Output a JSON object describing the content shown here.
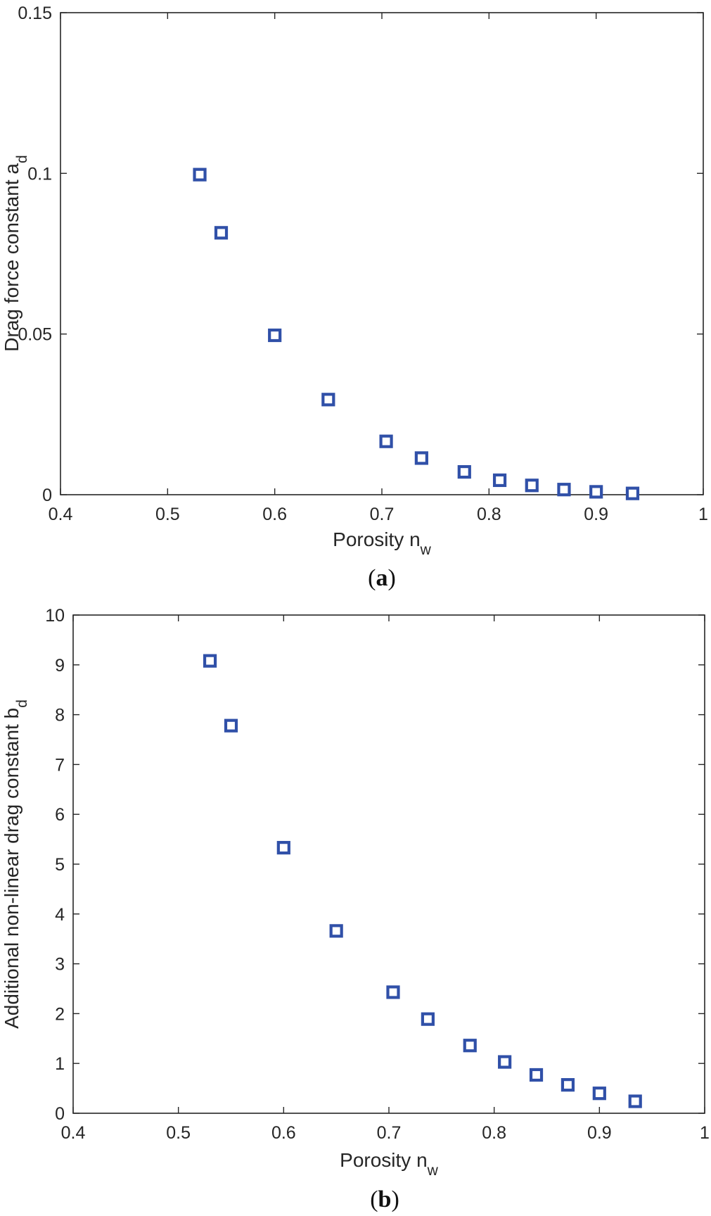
{
  "chart_data": [
    {
      "type": "scatter",
      "panel_label": "a",
      "xlabel": "Porosity n",
      "xlabel_sub": "w",
      "ylabel": "Drag force constant a",
      "ylabel_sub": "d",
      "xlim": [
        0.4,
        1
      ],
      "ylim": [
        0,
        0.15
      ],
      "xticks": [
        0.4,
        0.5,
        0.6,
        0.7,
        0.8,
        0.9,
        1
      ],
      "xtick_labels": [
        "0.4",
        "0.5",
        "0.6",
        "0.7",
        "0.8",
        "0.9",
        "1"
      ],
      "yticks": [
        0,
        0.05,
        0.1,
        0.15
      ],
      "ytick_labels": [
        "0",
        "0.05",
        "0.1",
        "0.15"
      ],
      "marker": "square",
      "color": "#3050a8",
      "x": [
        0.53,
        0.55,
        0.6,
        0.65,
        0.704,
        0.737,
        0.777,
        0.81,
        0.84,
        0.87,
        0.9,
        0.934
      ],
      "y": [
        0.0996,
        0.0815,
        0.0496,
        0.0296,
        0.0166,
        0.0114,
        0.0071,
        0.0045,
        0.0029,
        0.0016,
        0.0009,
        0.0004
      ]
    },
    {
      "type": "scatter",
      "panel_label": "b",
      "xlabel": "Porosity n",
      "xlabel_sub": "w",
      "ylabel": "Additional non-linear drag constant b",
      "ylabel_sub": "d",
      "xlim": [
        0.4,
        1
      ],
      "ylim": [
        0,
        10
      ],
      "xticks": [
        0.4,
        0.5,
        0.6,
        0.7,
        0.8,
        0.9,
        1
      ],
      "xtick_labels": [
        "0.4",
        "0.5",
        "0.6",
        "0.7",
        "0.8",
        "0.9",
        "1"
      ],
      "yticks": [
        0,
        1,
        2,
        3,
        4,
        5,
        6,
        7,
        8,
        9,
        10
      ],
      "ytick_labels": [
        "0",
        "1",
        "2",
        "3",
        "4",
        "5",
        "6",
        "7",
        "8",
        "9",
        "10"
      ],
      "marker": "square",
      "color": "#3050a8",
      "x": [
        0.53,
        0.55,
        0.6,
        0.65,
        0.704,
        0.737,
        0.777,
        0.81,
        0.84,
        0.87,
        0.9,
        0.934
      ],
      "y": [
        9.08,
        7.78,
        5.33,
        3.66,
        2.43,
        1.89,
        1.36,
        1.03,
        0.77,
        0.57,
        0.4,
        0.24
      ]
    }
  ]
}
